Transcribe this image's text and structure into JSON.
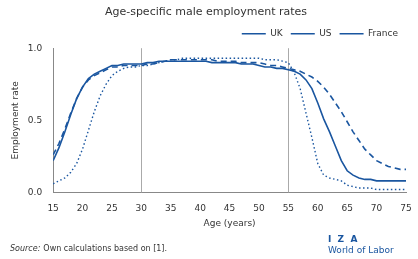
{
  "chart_data": {
    "type": "line",
    "title": "Age-specific male employment rates",
    "x_label": "Age (years)",
    "y_label": "Employment rate",
    "x": [
      15,
      16,
      17,
      18,
      19,
      20,
      21,
      22,
      23,
      24,
      25,
      26,
      27,
      28,
      29,
      30,
      31,
      32,
      33,
      34,
      35,
      36,
      37,
      38,
      39,
      40,
      41,
      42,
      43,
      44,
      45,
      46,
      47,
      48,
      49,
      50,
      51,
      52,
      53,
      54,
      55,
      56,
      57,
      58,
      59,
      60,
      61,
      62,
      63,
      64,
      65,
      66,
      67,
      68,
      69,
      70,
      71,
      72,
      73,
      74,
      75
    ],
    "series": [
      {
        "name": "UK",
        "color": "#1a56a0",
        "line_style": "solid",
        "values": [
          0.22,
          0.31,
          0.42,
          0.54,
          0.65,
          0.73,
          0.79,
          0.82,
          0.84,
          0.86,
          0.88,
          0.88,
          0.89,
          0.89,
          0.89,
          0.89,
          0.9,
          0.9,
          0.91,
          0.91,
          0.91,
          0.91,
          0.91,
          0.91,
          0.91,
          0.91,
          0.91,
          0.9,
          0.9,
          0.9,
          0.9,
          0.9,
          0.89,
          0.89,
          0.89,
          0.88,
          0.87,
          0.87,
          0.86,
          0.86,
          0.85,
          0.84,
          0.82,
          0.78,
          0.72,
          0.62,
          0.51,
          0.42,
          0.32,
          0.22,
          0.15,
          0.12,
          0.1,
          0.09,
          0.09,
          0.08,
          0.08,
          0.08,
          0.08,
          0.08,
          0.08
        ]
      },
      {
        "name": "US",
        "color": "#1a56a0",
        "line_style": "dashed",
        "values": [
          0.26,
          0.34,
          0.44,
          0.55,
          0.65,
          0.73,
          0.78,
          0.81,
          0.83,
          0.85,
          0.87,
          0.87,
          0.88,
          0.88,
          0.88,
          0.88,
          0.89,
          0.89,
          0.9,
          0.91,
          0.92,
          0.92,
          0.92,
          0.92,
          0.92,
          0.92,
          0.92,
          0.92,
          0.91,
          0.91,
          0.91,
          0.91,
          0.9,
          0.9,
          0.9,
          0.9,
          0.89,
          0.88,
          0.88,
          0.87,
          0.86,
          0.85,
          0.84,
          0.82,
          0.8,
          0.77,
          0.73,
          0.68,
          0.62,
          0.56,
          0.49,
          0.42,
          0.36,
          0.3,
          0.26,
          0.22,
          0.2,
          0.18,
          0.17,
          0.16,
          0.16
        ]
      },
      {
        "name": "France",
        "color": "#1a56a0",
        "line_style": "dotted",
        "values": [
          0.06,
          0.08,
          0.1,
          0.14,
          0.2,
          0.3,
          0.43,
          0.56,
          0.67,
          0.75,
          0.81,
          0.84,
          0.86,
          0.87,
          0.87,
          0.88,
          0.88,
          0.89,
          0.9,
          0.91,
          0.92,
          0.92,
          0.93,
          0.93,
          0.93,
          0.93,
          0.93,
          0.93,
          0.93,
          0.93,
          0.93,
          0.93,
          0.93,
          0.93,
          0.93,
          0.93,
          0.92,
          0.92,
          0.92,
          0.91,
          0.9,
          0.83,
          0.72,
          0.55,
          0.38,
          0.2,
          0.12,
          0.1,
          0.09,
          0.08,
          0.05,
          0.04,
          0.03,
          0.03,
          0.03,
          0.02,
          0.02,
          0.02,
          0.02,
          0.02,
          0.02
        ]
      }
    ],
    "xlim": [
      15,
      75
    ],
    "xticks": [
      15,
      20,
      25,
      30,
      35,
      40,
      45,
      50,
      55,
      60,
      65,
      70,
      75
    ],
    "ylim": [
      0,
      1.0
    ],
    "yticks": [
      {
        "value": 0,
        "label": "0.0"
      },
      0.5,
      {
        "value": 1,
        "label": "1.0"
      }
    ],
    "vlines": [
      30,
      55
    ],
    "grid": false,
    "legend": "upper right",
    "annotations": [
      "Source:",
      "Own calculations based on [1].",
      "I  Z  A",
      "World of Labor"
    ]
  }
}
